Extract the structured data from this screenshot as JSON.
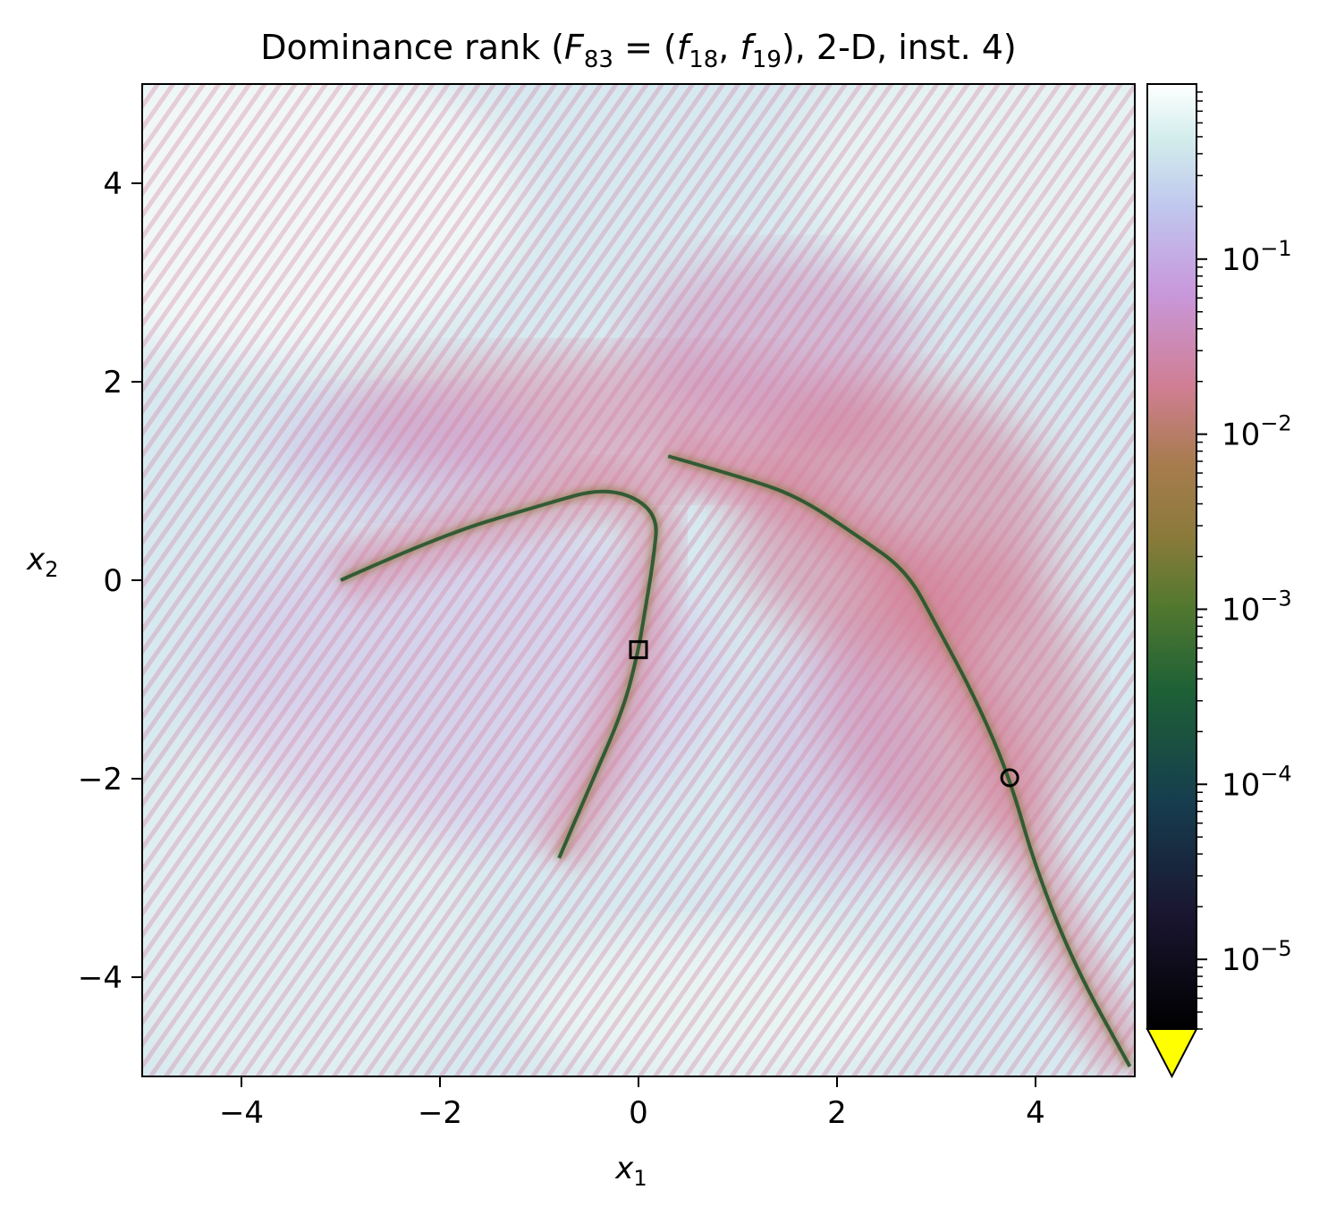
{
  "chart_data": {
    "type": "heatmap",
    "title_parts": {
      "prefix": "Dominance rank (",
      "F": "F",
      "F_sub": "83",
      "eq": " = (",
      "f1": "f",
      "f1_sub": "18",
      "comma": ", ",
      "f2": "f",
      "f2_sub": "19",
      "suffix": "), 2-D, inst. 4)"
    },
    "xlabel": {
      "var": "x",
      "sub": "1"
    },
    "ylabel": {
      "var": "x",
      "sub": "2"
    },
    "xlim": [
      -5,
      5
    ],
    "ylim": [
      -5,
      5
    ],
    "x_ticks": [
      {
        "value": -4,
        "label": "−4"
      },
      {
        "value": -2,
        "label": "−2"
      },
      {
        "value": 0,
        "label": "0"
      },
      {
        "value": 2,
        "label": "2"
      },
      {
        "value": 4,
        "label": "4"
      }
    ],
    "y_ticks": [
      {
        "value": -4,
        "label": "−4"
      },
      {
        "value": -2,
        "label": "−2"
      },
      {
        "value": 0,
        "label": "0"
      },
      {
        "value": 2,
        "label": "2"
      },
      {
        "value": 4,
        "label": "4"
      }
    ],
    "colorbar": {
      "scale": "log",
      "range": [
        4e-06,
        1.0
      ],
      "extend": "min",
      "under_color": "#ffff00",
      "ticks": [
        {
          "exp": -5,
          "base": "10",
          "sup": "−5"
        },
        {
          "exp": -4,
          "base": "10",
          "sup": "−4"
        },
        {
          "exp": -3,
          "base": "10",
          "sup": "−3"
        },
        {
          "exp": -2,
          "base": "10",
          "sup": "−2"
        },
        {
          "exp": -1,
          "base": "10",
          "sup": "−1"
        }
      ],
      "stops": [
        {
          "t": 0.0,
          "color": "#000000"
        },
        {
          "t": 0.12,
          "color": "#1a1530"
        },
        {
          "t": 0.24,
          "color": "#163d4e"
        },
        {
          "t": 0.36,
          "color": "#1e6136"
        },
        {
          "t": 0.45,
          "color": "#54792f"
        },
        {
          "t": 0.52,
          "color": "#8a7a3a"
        },
        {
          "t": 0.6,
          "color": "#a87c4f"
        },
        {
          "t": 0.68,
          "color": "#d07e93"
        },
        {
          "t": 0.78,
          "color": "#c898dc"
        },
        {
          "t": 0.87,
          "color": "#c0c7ee"
        },
        {
          "t": 0.94,
          "color": "#d1ecec"
        },
        {
          "t": 1.0,
          "color": "#ffffff"
        }
      ]
    },
    "markers": [
      {
        "name": "square-marker",
        "shape": "square",
        "x": 0.0,
        "y": -0.7
      },
      {
        "name": "circle-marker",
        "shape": "circle",
        "x": 3.74,
        "y": -1.99
      }
    ],
    "front_curves": [
      {
        "name": "right-front-curve",
        "points": [
          [
            0.3,
            1.25
          ],
          [
            1.0,
            1.05
          ],
          [
            1.6,
            0.85
          ],
          [
            2.2,
            0.45
          ],
          [
            2.7,
            0.1
          ],
          [
            3.0,
            -0.45
          ],
          [
            3.4,
            -1.2
          ],
          [
            3.74,
            -1.99
          ],
          [
            4.0,
            -2.9
          ],
          [
            4.4,
            -3.9
          ],
          [
            4.95,
            -4.9
          ]
        ]
      },
      {
        "name": "center-front-curve",
        "points": [
          [
            -3.0,
            0.0
          ],
          [
            -2.0,
            0.45
          ],
          [
            -1.0,
            0.75
          ],
          [
            -0.3,
            0.95
          ],
          [
            0.2,
            0.7
          ],
          [
            0.15,
            0.2
          ],
          [
            0.05,
            -0.4
          ],
          [
            0.0,
            -0.7
          ],
          [
            -0.15,
            -1.3
          ],
          [
            -0.5,
            -2.1
          ],
          [
            -0.8,
            -2.8
          ]
        ]
      }
    ]
  }
}
